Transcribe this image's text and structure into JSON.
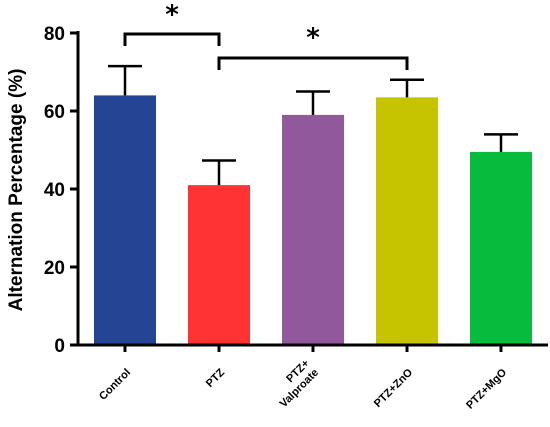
{
  "chart_data": {
    "type": "bar",
    "title": "",
    "xlabel": "",
    "ylabel": "Alternation Percentage (%)",
    "ylim": [
      0,
      80
    ],
    "yticks": [
      "0",
      "20",
      "40",
      "60",
      "80"
    ],
    "grid": false,
    "legend": "none",
    "categories": [
      "Control",
      "PTZ",
      "PTZ+ Valproate",
      "PTZ+ZnO",
      "PTZ+MgO"
    ],
    "category_lines": [
      [
        "Control"
      ],
      [
        "PTZ"
      ],
      [
        "PTZ+",
        "Valproate"
      ],
      [
        "PTZ+ZnO"
      ],
      [
        "PTZ+MgO"
      ]
    ],
    "values": [
      64,
      41,
      59,
      63.5,
      49.5
    ],
    "errors": [
      7.5,
      6.3,
      6.0,
      4.5,
      4.5
    ],
    "colors": [
      "#234593",
      "#ff3333",
      "#92589c",
      "#c6c300",
      "#07bc3d"
    ],
    "significance": [
      {
        "from": "Control",
        "to": "PTZ",
        "label": "*"
      },
      {
        "from": "PTZ",
        "to": "PTZ+ZnO",
        "label": "*"
      }
    ]
  }
}
